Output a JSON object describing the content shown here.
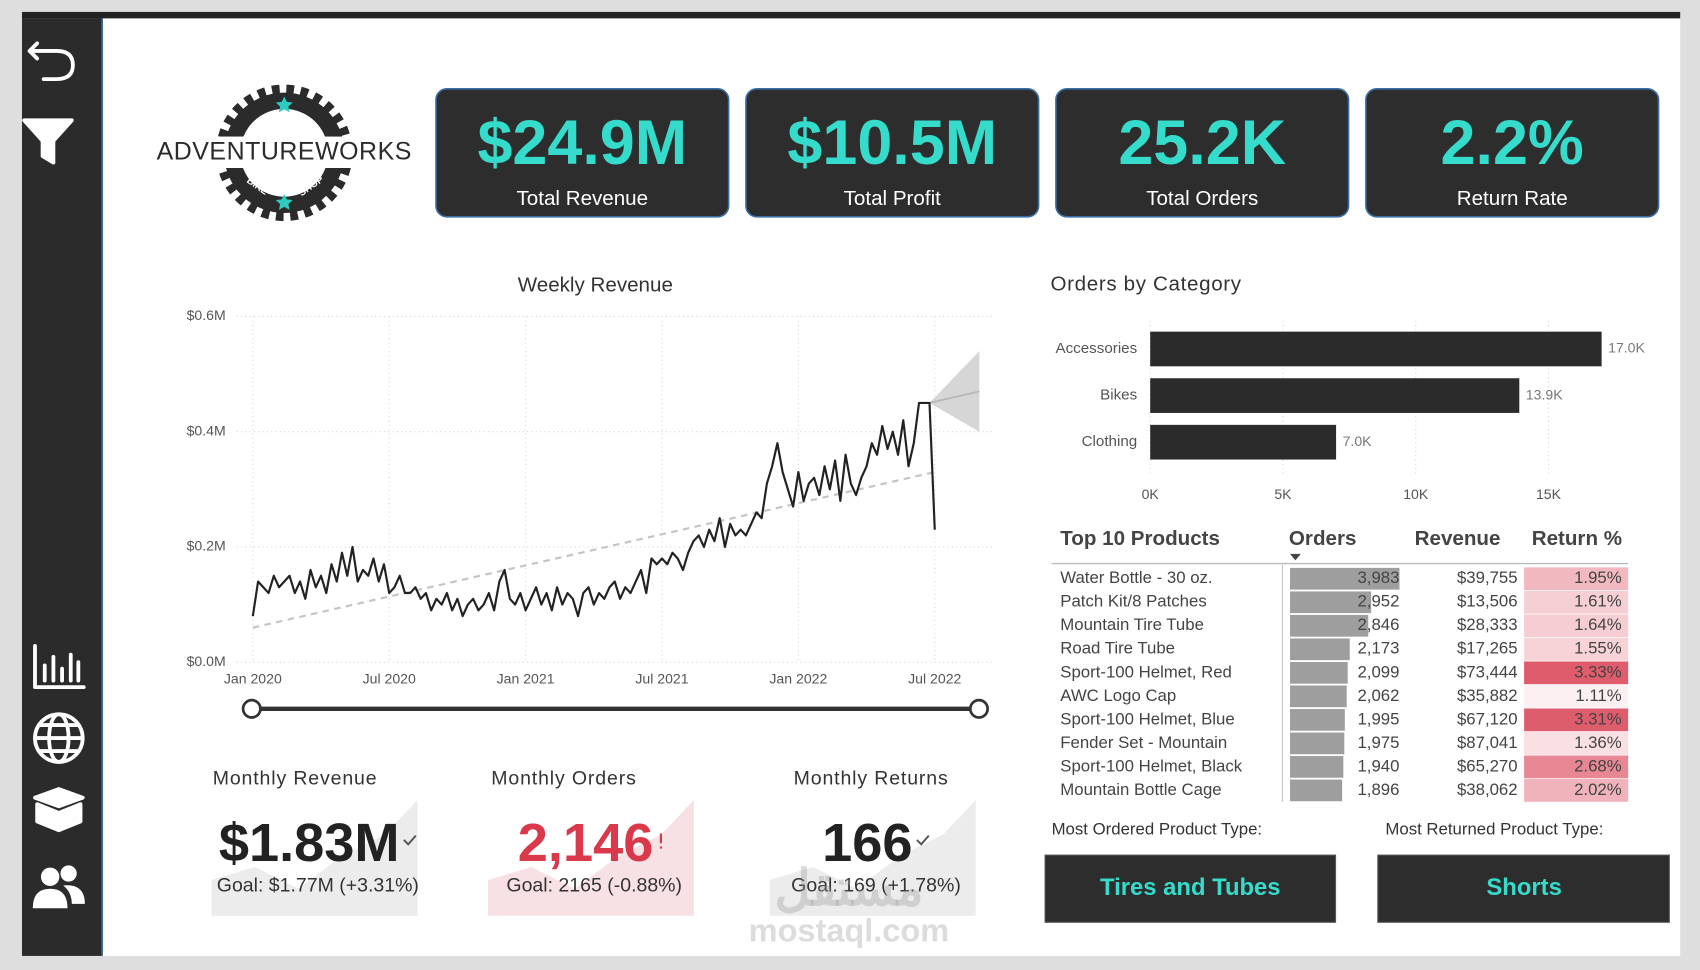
{
  "logo": {
    "name": "ADVENTUREWORKS",
    "left": "BIKE",
    "right": "SHOP"
  },
  "kpis": [
    {
      "value": "$24.9M",
      "label": "Total Revenue"
    },
    {
      "value": "$10.5M",
      "label": "Total Profit"
    },
    {
      "value": "25.2K",
      "label": "Total Orders"
    },
    {
      "value": "2.2%",
      "label": "Return Rate"
    }
  ],
  "chart_data": [
    {
      "type": "line",
      "title": "Weekly Revenue",
      "categories": [
        "Jan 2020",
        null,
        null,
        null,
        null,
        null,
        null,
        null,
        null,
        null,
        null,
        null,
        null,
        null,
        null,
        null,
        null,
        null,
        null,
        null,
        null,
        null,
        null,
        null,
        null,
        null,
        "Jul 2020",
        null,
        null,
        null,
        null,
        null,
        null,
        null,
        null,
        null,
        null,
        null,
        null,
        null,
        null,
        null,
        null,
        null,
        null,
        null,
        null,
        null,
        null,
        null,
        null,
        null,
        "Jan 2021",
        null,
        null,
        null,
        null,
        null,
        null,
        null,
        null,
        null,
        null,
        null,
        null,
        null,
        null,
        null,
        null,
        null,
        null,
        null,
        null,
        null,
        null,
        null,
        null,
        null,
        "Jul 2021",
        null,
        null,
        null,
        null,
        null,
        null,
        null,
        null,
        null,
        null,
        null,
        null,
        null,
        null,
        null,
        null,
        null,
        null,
        null,
        null,
        null,
        null,
        null,
        null,
        null,
        "Jan 2022",
        null,
        null,
        null,
        null,
        null,
        null,
        null,
        null,
        null,
        null,
        null,
        null,
        null,
        null,
        null,
        null,
        null,
        null,
        null,
        null,
        null,
        null,
        null,
        null,
        null,
        "Jul 2022"
      ],
      "values": [
        0.08,
        0.14,
        0.13,
        0.12,
        0.15,
        0.13,
        0.14,
        0.15,
        0.12,
        0.14,
        0.11,
        0.16,
        0.13,
        0.15,
        0.12,
        0.17,
        0.14,
        0.19,
        0.15,
        0.2,
        0.14,
        0.16,
        0.15,
        0.18,
        0.14,
        0.17,
        0.12,
        0.13,
        0.15,
        0.12,
        0.12,
        0.13,
        0.11,
        0.12,
        0.09,
        0.11,
        0.1,
        0.12,
        0.09,
        0.11,
        0.08,
        0.1,
        0.11,
        0.09,
        0.1,
        0.12,
        0.09,
        0.14,
        0.16,
        0.11,
        0.1,
        0.12,
        0.09,
        0.11,
        0.13,
        0.1,
        0.12,
        0.09,
        0.13,
        0.1,
        0.12,
        0.11,
        0.08,
        0.12,
        0.13,
        0.1,
        0.12,
        0.11,
        0.13,
        0.14,
        0.11,
        0.13,
        0.12,
        0.14,
        0.16,
        0.12,
        0.18,
        0.17,
        0.18,
        0.17,
        0.19,
        0.18,
        0.16,
        0.19,
        0.21,
        0.22,
        0.2,
        0.23,
        0.21,
        0.25,
        0.2,
        0.24,
        0.22,
        0.23,
        0.22,
        0.24,
        0.26,
        0.25,
        0.31,
        0.34,
        0.38,
        0.33,
        0.3,
        0.27,
        0.33,
        0.28,
        0.31,
        0.32,
        0.29,
        0.34,
        0.3,
        0.35,
        0.28,
        0.36,
        0.31,
        0.29,
        0.32,
        0.34,
        0.38,
        0.36,
        0.41,
        0.37,
        0.4,
        0.36,
        0.42,
        0.34,
        0.38,
        0.45,
        0.45,
        0.45,
        0.23
      ],
      "color": "#222222",
      "trend": [
        0.06,
        0.33
      ],
      "forecast": {
        "values": [
          0.45,
          0.47
        ],
        "upper": [
          0.45,
          0.54
        ],
        "lower": [
          0.45,
          0.4
        ]
      },
      "ylim": [
        0,
        0.6
      ],
      "yticks": [
        {
          "value": 0,
          "label": "$0.0M"
        },
        {
          "value": 0.2,
          "label": "$0.2M"
        },
        {
          "value": 0.4,
          "label": "$0.4M"
        },
        {
          "value": 0.6,
          "label": "$0.6M"
        }
      ],
      "grid": true
    },
    {
      "type": "bar",
      "orientation": "horizontal",
      "title": "Orders by Category",
      "categories": [
        "Accessories",
        "Bikes",
        "Clothing"
      ],
      "values": [
        17000,
        13900,
        7000
      ],
      "value_labels": [
        "17.0K",
        "13.9K",
        "7.0K"
      ],
      "color": "#2b2b2b",
      "xlim": [
        0,
        18000
      ],
      "xticks": [
        {
          "value": 0,
          "label": "0K"
        },
        {
          "value": 5000,
          "label": "5K"
        },
        {
          "value": 10000,
          "label": "10K"
        },
        {
          "value": 15000,
          "label": "15K"
        }
      ],
      "grid": true
    }
  ],
  "top_products": {
    "title": "Top 10 Products",
    "columns": [
      "Orders",
      "Revenue",
      "Return %"
    ],
    "rows": [
      {
        "product": "Water Bottle - 30 oz.",
        "orders": {
          "value": 3983,
          "label": "3,983"
        },
        "revenue": "$39,755",
        "return": {
          "value": 1.95,
          "label": "1.95%"
        }
      },
      {
        "product": "Patch Kit/8 Patches",
        "orders": {
          "value": 2952,
          "label": "2,952"
        },
        "revenue": "$13,506",
        "return": {
          "value": 1.61,
          "label": "1.61%"
        }
      },
      {
        "product": "Mountain Tire Tube",
        "orders": {
          "value": 2846,
          "label": "2,846"
        },
        "revenue": "$28,333",
        "return": {
          "value": 1.64,
          "label": "1.64%"
        }
      },
      {
        "product": "Road Tire Tube",
        "orders": {
          "value": 2173,
          "label": "2,173"
        },
        "revenue": "$17,265",
        "return": {
          "value": 1.55,
          "label": "1.55%"
        }
      },
      {
        "product": "Sport-100 Helmet, Red",
        "orders": {
          "value": 2099,
          "label": "2,099"
        },
        "revenue": "$73,444",
        "return": {
          "value": 3.33,
          "label": "3.33%"
        }
      },
      {
        "product": "AWC Logo Cap",
        "orders": {
          "value": 2062,
          "label": "2,062"
        },
        "revenue": "$35,882",
        "return": {
          "value": 1.11,
          "label": "1.11%"
        }
      },
      {
        "product": "Sport-100 Helmet, Blue",
        "orders": {
          "value": 1995,
          "label": "1,995"
        },
        "revenue": "$67,120",
        "return": {
          "value": 3.31,
          "label": "3.31%"
        }
      },
      {
        "product": "Fender Set - Mountain",
        "orders": {
          "value": 1975,
          "label": "1,975"
        },
        "revenue": "$87,041",
        "return": {
          "value": 1.36,
          "label": "1.36%"
        }
      },
      {
        "product": "Sport-100 Helmet, Black",
        "orders": {
          "value": 1940,
          "label": "1,940"
        },
        "revenue": "$65,270",
        "return": {
          "value": 2.68,
          "label": "2.68%"
        }
      },
      {
        "product": "Mountain Bottle Cage",
        "orders": {
          "value": 1896,
          "label": "1,896"
        },
        "revenue": "$38,062",
        "return": {
          "value": 2.02,
          "label": "2.02%"
        }
      }
    ]
  },
  "monthly": [
    {
      "title": "Monthly Revenue",
      "value": "$1.83M",
      "goal": "Goal: $1.77M (+3.31%)",
      "color": "#222222",
      "goal_met": true
    },
    {
      "title": "Monthly Orders",
      "value": "2,146",
      "goal": "Goal: 2165 (-0.88%)",
      "color": "#d9394b",
      "goal_met": false
    },
    {
      "title": "Monthly Returns",
      "value": "166",
      "goal": "Goal: 169 (+1.78%)",
      "color": "#222222",
      "goal_met": true
    }
  ],
  "most_ordered": {
    "label": "Most Ordered Product Type:",
    "value": "Tires and Tubes"
  },
  "most_returned": {
    "label": "Most Returned Product Type:",
    "value": "Shorts"
  },
  "watermark": {
    "arabic": "مستقل",
    "latin": "mostaql.com"
  }
}
